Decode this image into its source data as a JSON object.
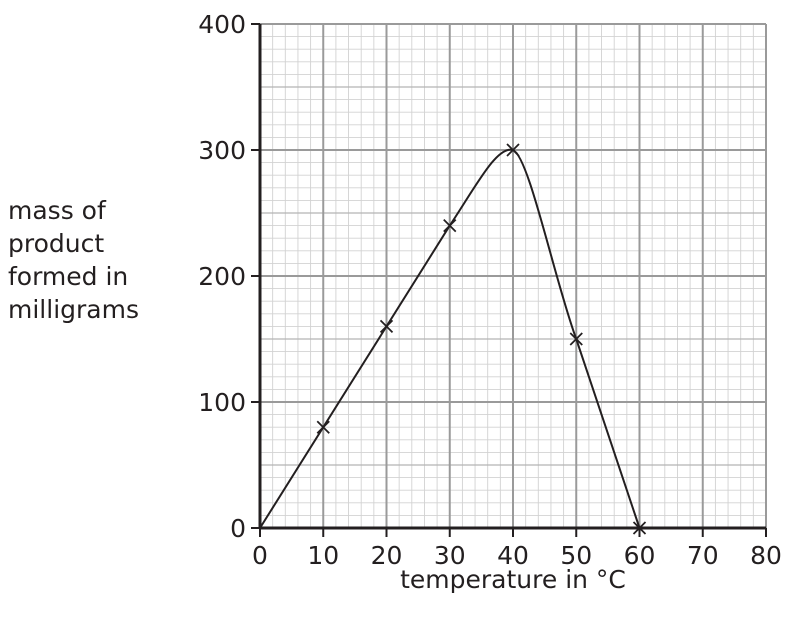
{
  "chart_data": {
    "type": "line",
    "title": "",
    "xlabel": "temperature in °C",
    "ylabel_lines": [
      "mass of",
      "product",
      "formed in",
      "milligrams"
    ],
    "xlim": [
      0,
      80
    ],
    "ylim": [
      0,
      400
    ],
    "x_ticks": [
      0,
      10,
      20,
      30,
      40,
      50,
      60,
      70,
      80
    ],
    "y_ticks": [
      0,
      100,
      200,
      300,
      400
    ],
    "grid": true,
    "marker": "x",
    "series": [
      {
        "x": [
          0,
          10,
          20,
          30,
          40,
          50,
          60
        ],
        "y": [
          0,
          80,
          160,
          240,
          300,
          150,
          0
        ],
        "plotted_points": [
          {
            "x": 10,
            "y": 80
          },
          {
            "x": 20,
            "y": 160
          },
          {
            "x": 30,
            "y": 240
          },
          {
            "x": 40,
            "y": 300
          },
          {
            "x": 50,
            "y": 150
          },
          {
            "x": 60,
            "y": 0
          }
        ]
      }
    ]
  }
}
